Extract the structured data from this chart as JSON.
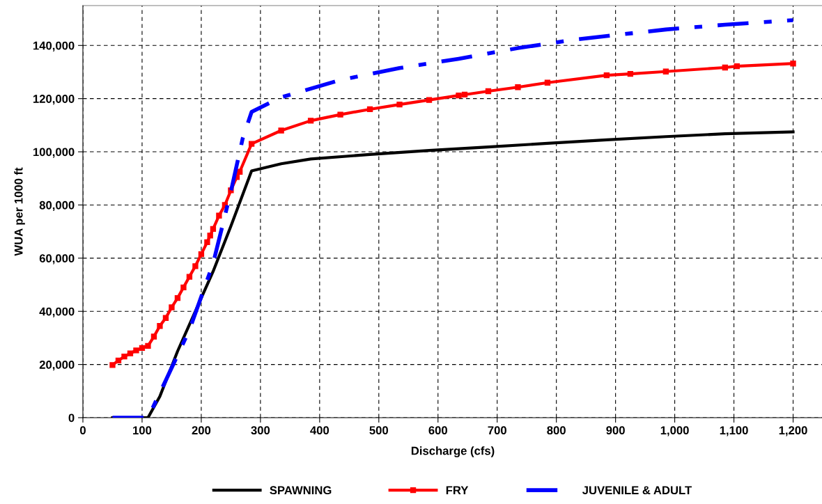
{
  "chart_data": {
    "type": "line",
    "xlabel": "Discharge (cfs)",
    "ylabel": "WUA per 1000 ft",
    "xlim": [
      0,
      1250
    ],
    "xticks": [
      0,
      100,
      200,
      300,
      400,
      500,
      600,
      700,
      800,
      900,
      {
        "value": 1000,
        "label": "1,000"
      },
      {
        "value": 1100,
        "label": "1,100"
      },
      {
        "value": 1200,
        "label": "1,200"
      }
    ],
    "ylim": [
      0,
      155000
    ],
    "yticks": [
      0,
      {
        "value": 20000,
        "label": "20,000"
      },
      {
        "value": 40000,
        "label": "40,000"
      },
      {
        "value": 60000,
        "label": "60,000"
      },
      {
        "value": 80000,
        "label": "80,000"
      },
      {
        "value": 100000,
        "label": "100,000"
      },
      {
        "value": 120000,
        "label": "120,000"
      },
      {
        "value": 140000,
        "label": "140,000"
      }
    ],
    "grid": true,
    "legend": "bottom",
    "series": [
      {
        "name": "SPAWNING",
        "color": "#000000",
        "marker": "none",
        "line_style": "solid",
        "x": [
          50,
          100,
          110,
          130,
          160,
          200,
          220,
          250,
          285,
          335,
          385,
          485,
          585,
          685,
          785,
          885,
          985,
          1085,
          1200
        ],
        "values": [
          0,
          0,
          0,
          8000,
          25000,
          45000,
          55000,
          72000,
          92800,
          95500,
          97300,
          99000,
          100500,
          101800,
          103200,
          104500,
          105700,
          106800,
          107500
        ]
      },
      {
        "name": "FRY",
        "color": "#ff0000",
        "marker": "square",
        "line_style": "solid",
        "x": [
          50,
          60,
          70,
          80,
          90,
          100,
          110,
          120,
          130,
          140,
          150,
          160,
          170,
          180,
          190,
          200,
          210,
          215,
          220,
          230,
          240,
          250,
          260,
          265,
          285,
          335,
          385,
          435,
          485,
          535,
          585,
          635,
          645,
          685,
          735,
          785,
          885,
          925,
          985,
          1085,
          1105,
          1200
        ],
        "values": [
          19800,
          21500,
          23000,
          24200,
          25300,
          26200,
          27000,
          30500,
          34500,
          37500,
          41500,
          45000,
          49000,
          53000,
          57000,
          61500,
          66000,
          68500,
          71000,
          76000,
          80000,
          85500,
          90500,
          92500,
          103000,
          108000,
          111700,
          114000,
          116000,
          117800,
          119500,
          121200,
          121500,
          122800,
          124300,
          126000,
          128800,
          129300,
          130200,
          131700,
          132200,
          133200
        ]
      },
      {
        "name": "JUVENILE & ADULT",
        "color": "#0000ff",
        "marker": "none",
        "line_style": "dashdot",
        "x": [
          50,
          110,
          140,
          180,
          220,
          250,
          270,
          285,
          335,
          435,
          535,
          635,
          735,
          835,
          985,
          1085,
          1200
        ],
        "values": [
          0,
          0,
          14000,
          33000,
          58000,
          85000,
          105000,
          115000,
          120500,
          127000,
          131500,
          135000,
          139000,
          142300,
          146000,
          147800,
          149500
        ]
      }
    ]
  }
}
